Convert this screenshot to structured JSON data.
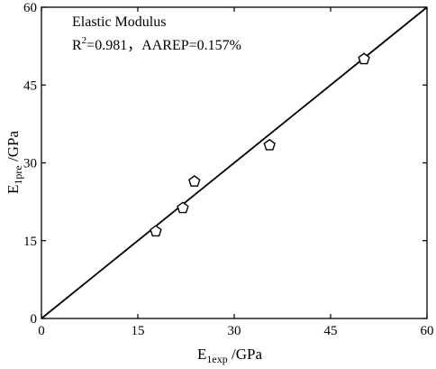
{
  "chart_data": {
    "type": "scatter",
    "annotation": {
      "title": "Elastic Modulus",
      "stats_prefix": "R",
      "stats_sup": "2",
      "stats_rest": "=0.981，AAREP=0.157%"
    },
    "xlabel": {
      "main": "E",
      "sub": "1exp",
      "unit": " /GPa"
    },
    "ylabel": {
      "main": "E",
      "sub": "1pre",
      "unit": " /GPa"
    },
    "xlim": [
      0,
      60
    ],
    "ylim": [
      0,
      60
    ],
    "xticks": [
      0,
      15,
      30,
      45,
      60
    ],
    "yticks": [
      0,
      15,
      30,
      45,
      60
    ],
    "reference_line": {
      "from": [
        0,
        0
      ],
      "to": [
        60,
        60
      ]
    },
    "series": [
      {
        "marker": "pentagon",
        "points": [
          {
            "x": 17.8,
            "y": 16.8
          },
          {
            "x": 22.0,
            "y": 21.3
          },
          {
            "x": 23.8,
            "y": 26.4
          },
          {
            "x": 35.5,
            "y": 33.4
          },
          {
            "x": 50.2,
            "y": 50.0
          }
        ]
      }
    ],
    "grid": false,
    "legend": "none"
  }
}
